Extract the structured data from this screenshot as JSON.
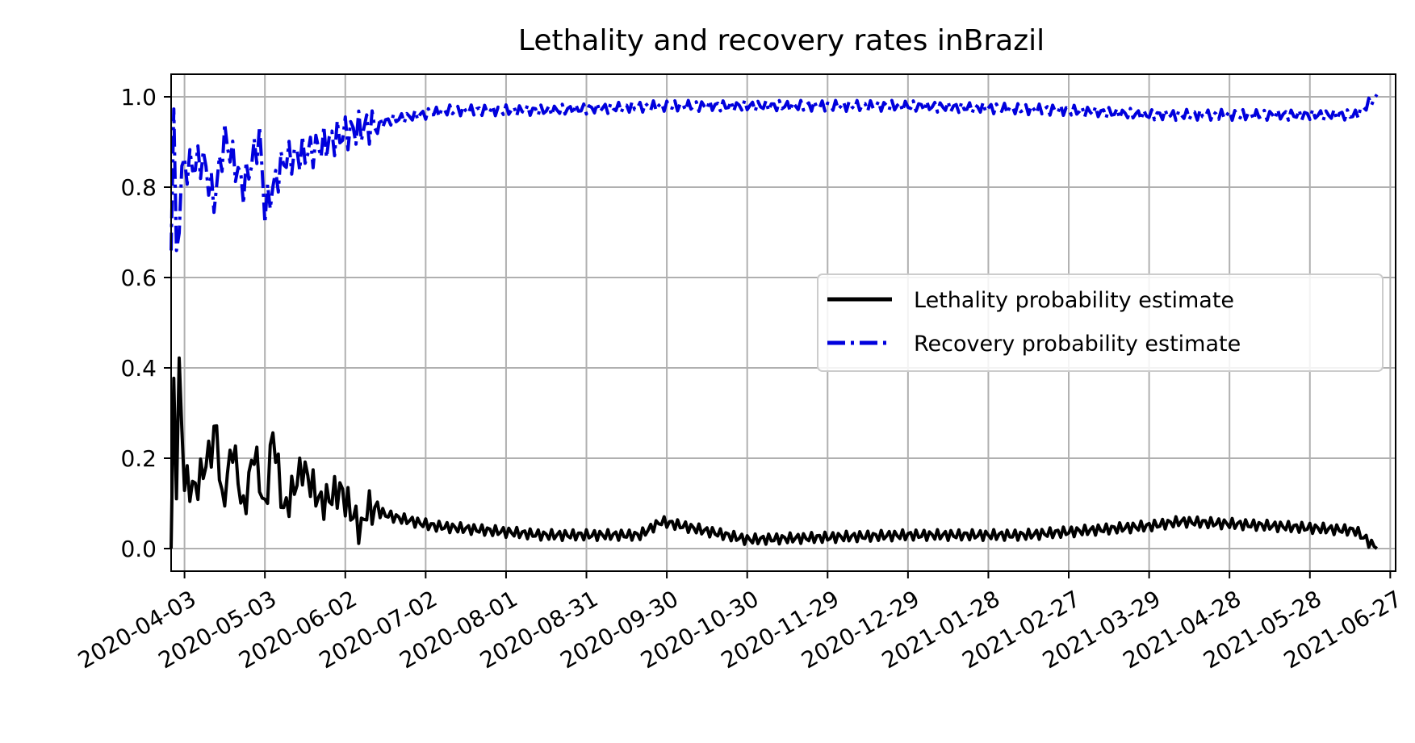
{
  "chart_data": {
    "type": "line",
    "title": "Lethality and recovery rates inBrazil",
    "xlabel": "",
    "ylabel": "",
    "x_start": "2020-03-29",
    "x_end": "2021-06-22",
    "xlim": [
      "2020-03-29",
      "2021-06-29"
    ],
    "ylim": [
      -0.05,
      1.05
    ],
    "x_ticks": [
      "2020-04-03",
      "2020-05-03",
      "2020-06-02",
      "2020-07-02",
      "2020-08-01",
      "2020-08-31",
      "2020-09-30",
      "2020-10-30",
      "2020-11-29",
      "2020-12-29",
      "2021-01-28",
      "2021-02-27",
      "2021-03-29",
      "2021-04-28",
      "2021-05-28",
      "2021-06-27"
    ],
    "y_ticks": [
      "0.0",
      "0.2",
      "0.4",
      "0.6",
      "0.8",
      "1.0"
    ],
    "y_tick_values": [
      0.0,
      0.2,
      0.4,
      0.6,
      0.8,
      1.0
    ],
    "grid": true,
    "legend_position": "center-right",
    "series": [
      {
        "name": "Lethality probability estimate",
        "color": "#000000",
        "style": "solid",
        "key_points": [
          [
            "2020-03-29",
            0.0
          ],
          [
            "2020-03-30",
            0.35
          ],
          [
            "2020-03-31",
            0.15
          ],
          [
            "2020-04-01",
            0.39
          ],
          [
            "2020-04-03",
            0.15
          ],
          [
            "2020-04-07",
            0.13
          ],
          [
            "2020-04-13",
            0.22
          ],
          [
            "2020-04-15",
            0.27
          ],
          [
            "2020-04-17",
            0.09
          ],
          [
            "2020-04-21",
            0.23
          ],
          [
            "2020-04-25",
            0.08
          ],
          [
            "2020-04-29",
            0.22
          ],
          [
            "2020-05-03",
            0.08
          ],
          [
            "2020-05-06",
            0.26
          ],
          [
            "2020-05-10",
            0.08
          ],
          [
            "2020-05-17",
            0.18
          ],
          [
            "2020-05-24",
            0.1
          ],
          [
            "2020-05-31",
            0.13
          ],
          [
            "2020-06-08",
            0.04
          ],
          [
            "2020-06-10",
            0.09
          ],
          [
            "2020-06-20",
            0.07
          ],
          [
            "2020-07-05",
            0.05
          ],
          [
            "2020-08-15",
            0.03
          ],
          [
            "2020-09-20",
            0.03
          ],
          [
            "2020-09-28",
            0.06
          ],
          [
            "2020-10-30",
            0.02
          ],
          [
            "2020-12-29",
            0.03
          ],
          [
            "2021-02-10",
            0.03
          ],
          [
            "2021-03-29",
            0.05
          ],
          [
            "2021-04-10",
            0.06
          ],
          [
            "2021-05-15",
            0.05
          ],
          [
            "2021-06-14",
            0.04
          ],
          [
            "2021-06-22",
            0.0
          ]
        ]
      },
      {
        "name": "Recovery probability estimate",
        "color": "#0000dd",
        "style": "dashdot",
        "key_points": [
          [
            "2020-03-29",
            0.66
          ],
          [
            "2020-03-30",
            1.0
          ],
          [
            "2020-03-31",
            0.62
          ],
          [
            "2020-04-02",
            0.84
          ],
          [
            "2020-04-10",
            0.86
          ],
          [
            "2020-04-14",
            0.77
          ],
          [
            "2020-04-18",
            0.91
          ],
          [
            "2020-04-25",
            0.8
          ],
          [
            "2020-05-01",
            0.91
          ],
          [
            "2020-05-03",
            0.75
          ],
          [
            "2020-05-10",
            0.86
          ],
          [
            "2020-05-20",
            0.88
          ],
          [
            "2020-06-02",
            0.92
          ],
          [
            "2020-06-20",
            0.95
          ],
          [
            "2020-07-10",
            0.97
          ],
          [
            "2020-08-15",
            0.97
          ],
          [
            "2020-09-30",
            0.98
          ],
          [
            "2020-10-30",
            0.98
          ],
          [
            "2020-12-29",
            0.98
          ],
          [
            "2021-02-27",
            0.97
          ],
          [
            "2021-03-29",
            0.96
          ],
          [
            "2021-04-28",
            0.96
          ],
          [
            "2021-05-28",
            0.96
          ],
          [
            "2021-06-14",
            0.96
          ],
          [
            "2021-06-22",
            1.0
          ]
        ]
      }
    ]
  },
  "colors": {
    "grid": "#b0b0b0",
    "axes": "#000000",
    "legend_border": "#cccccc"
  }
}
